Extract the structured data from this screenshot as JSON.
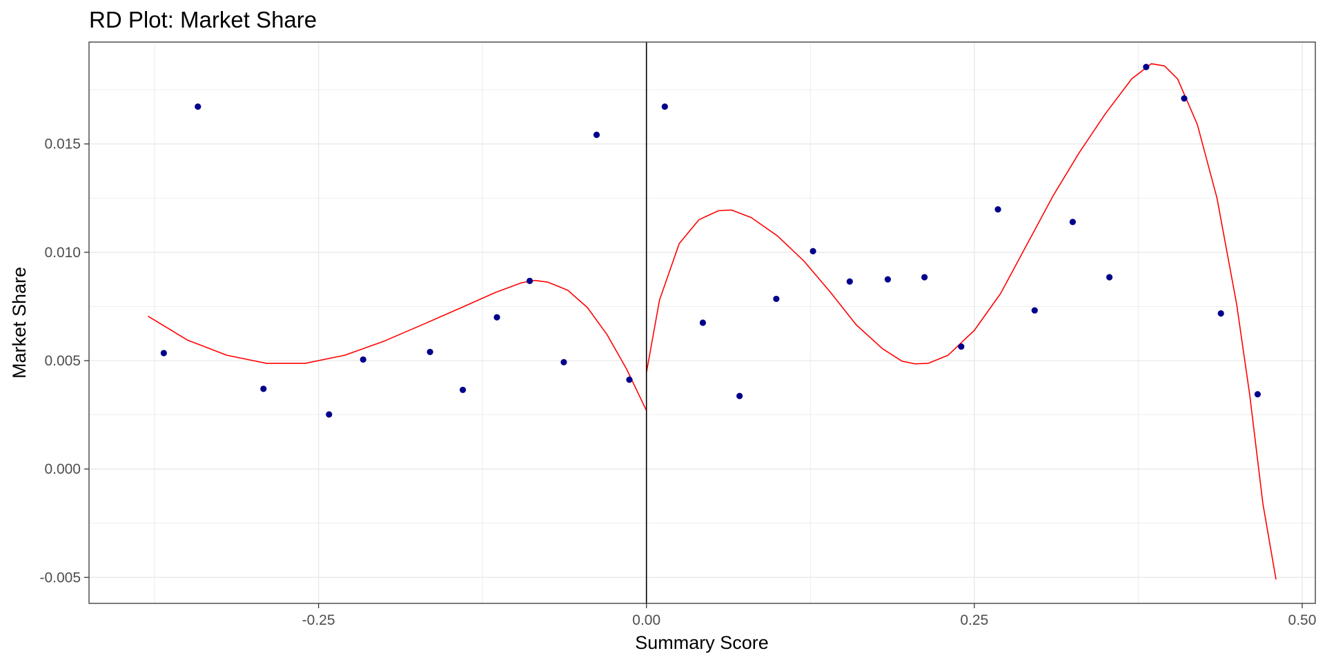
{
  "chart_data": {
    "type": "scatter",
    "title": "RD Plot: Market Share",
    "xlabel": "Summary Score",
    "ylabel": "Market Share",
    "xlim": [
      -0.425,
      0.51
    ],
    "ylim": [
      -0.0062,
      0.0197
    ],
    "x_ticks": [
      -0.25,
      0.0,
      0.25,
      0.5
    ],
    "x_tick_labels": [
      "-0.25",
      "0.00",
      "0.25",
      "0.50"
    ],
    "y_ticks": [
      -0.005,
      0.0,
      0.005,
      0.01,
      0.015
    ],
    "y_tick_labels": [
      "-0.005",
      "0.000",
      "0.005",
      "0.010",
      "0.015"
    ],
    "cutoff": 0.0,
    "grid": true,
    "colors": {
      "points": "#00008B",
      "fit": "#FF0000",
      "cutoff": "#000000",
      "grid": "#EBEBEB"
    },
    "series": [
      {
        "type": "scatter",
        "points": [
          [
            -0.368,
            0.00535
          ],
          [
            -0.342,
            0.01672
          ],
          [
            -0.292,
            0.0037
          ],
          [
            -0.242,
            0.00252
          ],
          [
            -0.216,
            0.00505
          ],
          [
            -0.165,
            0.0054
          ],
          [
            -0.14,
            0.00365
          ],
          [
            -0.114,
            0.007
          ],
          [
            -0.089,
            0.00868
          ],
          [
            -0.063,
            0.00493
          ],
          [
            -0.038,
            0.01542
          ],
          [
            -0.013,
            0.00412
          ],
          [
            0.014,
            0.01672
          ],
          [
            0.043,
            0.00675
          ],
          [
            0.071,
            0.00337
          ],
          [
            0.099,
            0.00785
          ],
          [
            0.127,
            0.01005
          ],
          [
            0.155,
            0.00865
          ],
          [
            0.184,
            0.00875
          ],
          [
            0.212,
            0.00885
          ],
          [
            0.24,
            0.00565
          ],
          [
            0.268,
            0.01198
          ],
          [
            0.296,
            0.00732
          ],
          [
            0.325,
            0.0114
          ],
          [
            0.353,
            0.00885
          ],
          [
            0.381,
            0.01855
          ],
          [
            0.41,
            0.0171
          ],
          [
            0.438,
            0.00718
          ],
          [
            0.466,
            0.00345
          ]
        ]
      },
      {
        "type": "line",
        "points": [
          [
            -0.38,
            0.00705
          ],
          [
            -0.35,
            0.00595
          ],
          [
            -0.32,
            0.00525
          ],
          [
            -0.29,
            0.00488
          ],
          [
            -0.26,
            0.00488
          ],
          [
            -0.23,
            0.00525
          ],
          [
            -0.2,
            0.0059
          ],
          [
            -0.17,
            0.00668
          ],
          [
            -0.14,
            0.00748
          ],
          [
            -0.115,
            0.00815
          ],
          [
            -0.095,
            0.0086
          ],
          [
            -0.085,
            0.0087
          ],
          [
            -0.075,
            0.00862
          ],
          [
            -0.06,
            0.00825
          ],
          [
            -0.045,
            0.00745
          ],
          [
            -0.03,
            0.0062
          ],
          [
            -0.015,
            0.0046
          ],
          [
            0.0,
            0.0027
          ]
        ]
      },
      {
        "type": "line",
        "points": [
          [
            0.0,
            0.00445
          ],
          [
            0.01,
            0.0078
          ],
          [
            0.025,
            0.0104
          ],
          [
            0.04,
            0.0115
          ],
          [
            0.055,
            0.01192
          ],
          [
            0.065,
            0.01195
          ],
          [
            0.08,
            0.0116
          ],
          [
            0.1,
            0.01075
          ],
          [
            0.12,
            0.0096
          ],
          [
            0.14,
            0.00818
          ],
          [
            0.16,
            0.00665
          ],
          [
            0.18,
            0.00555
          ],
          [
            0.195,
            0.00497
          ],
          [
            0.205,
            0.00485
          ],
          [
            0.215,
            0.00488
          ],
          [
            0.23,
            0.00525
          ],
          [
            0.25,
            0.0064
          ],
          [
            0.27,
            0.0081
          ],
          [
            0.29,
            0.01035
          ],
          [
            0.31,
            0.0126
          ],
          [
            0.33,
            0.0146
          ],
          [
            0.35,
            0.0164
          ],
          [
            0.37,
            0.018
          ],
          [
            0.385,
            0.0187
          ],
          [
            0.395,
            0.0186
          ],
          [
            0.405,
            0.018
          ],
          [
            0.42,
            0.0159
          ],
          [
            0.435,
            0.0125
          ],
          [
            0.45,
            0.0076
          ],
          [
            0.46,
            0.0034
          ],
          [
            0.47,
            -0.0016
          ],
          [
            0.48,
            -0.0051
          ]
        ]
      }
    ]
  }
}
